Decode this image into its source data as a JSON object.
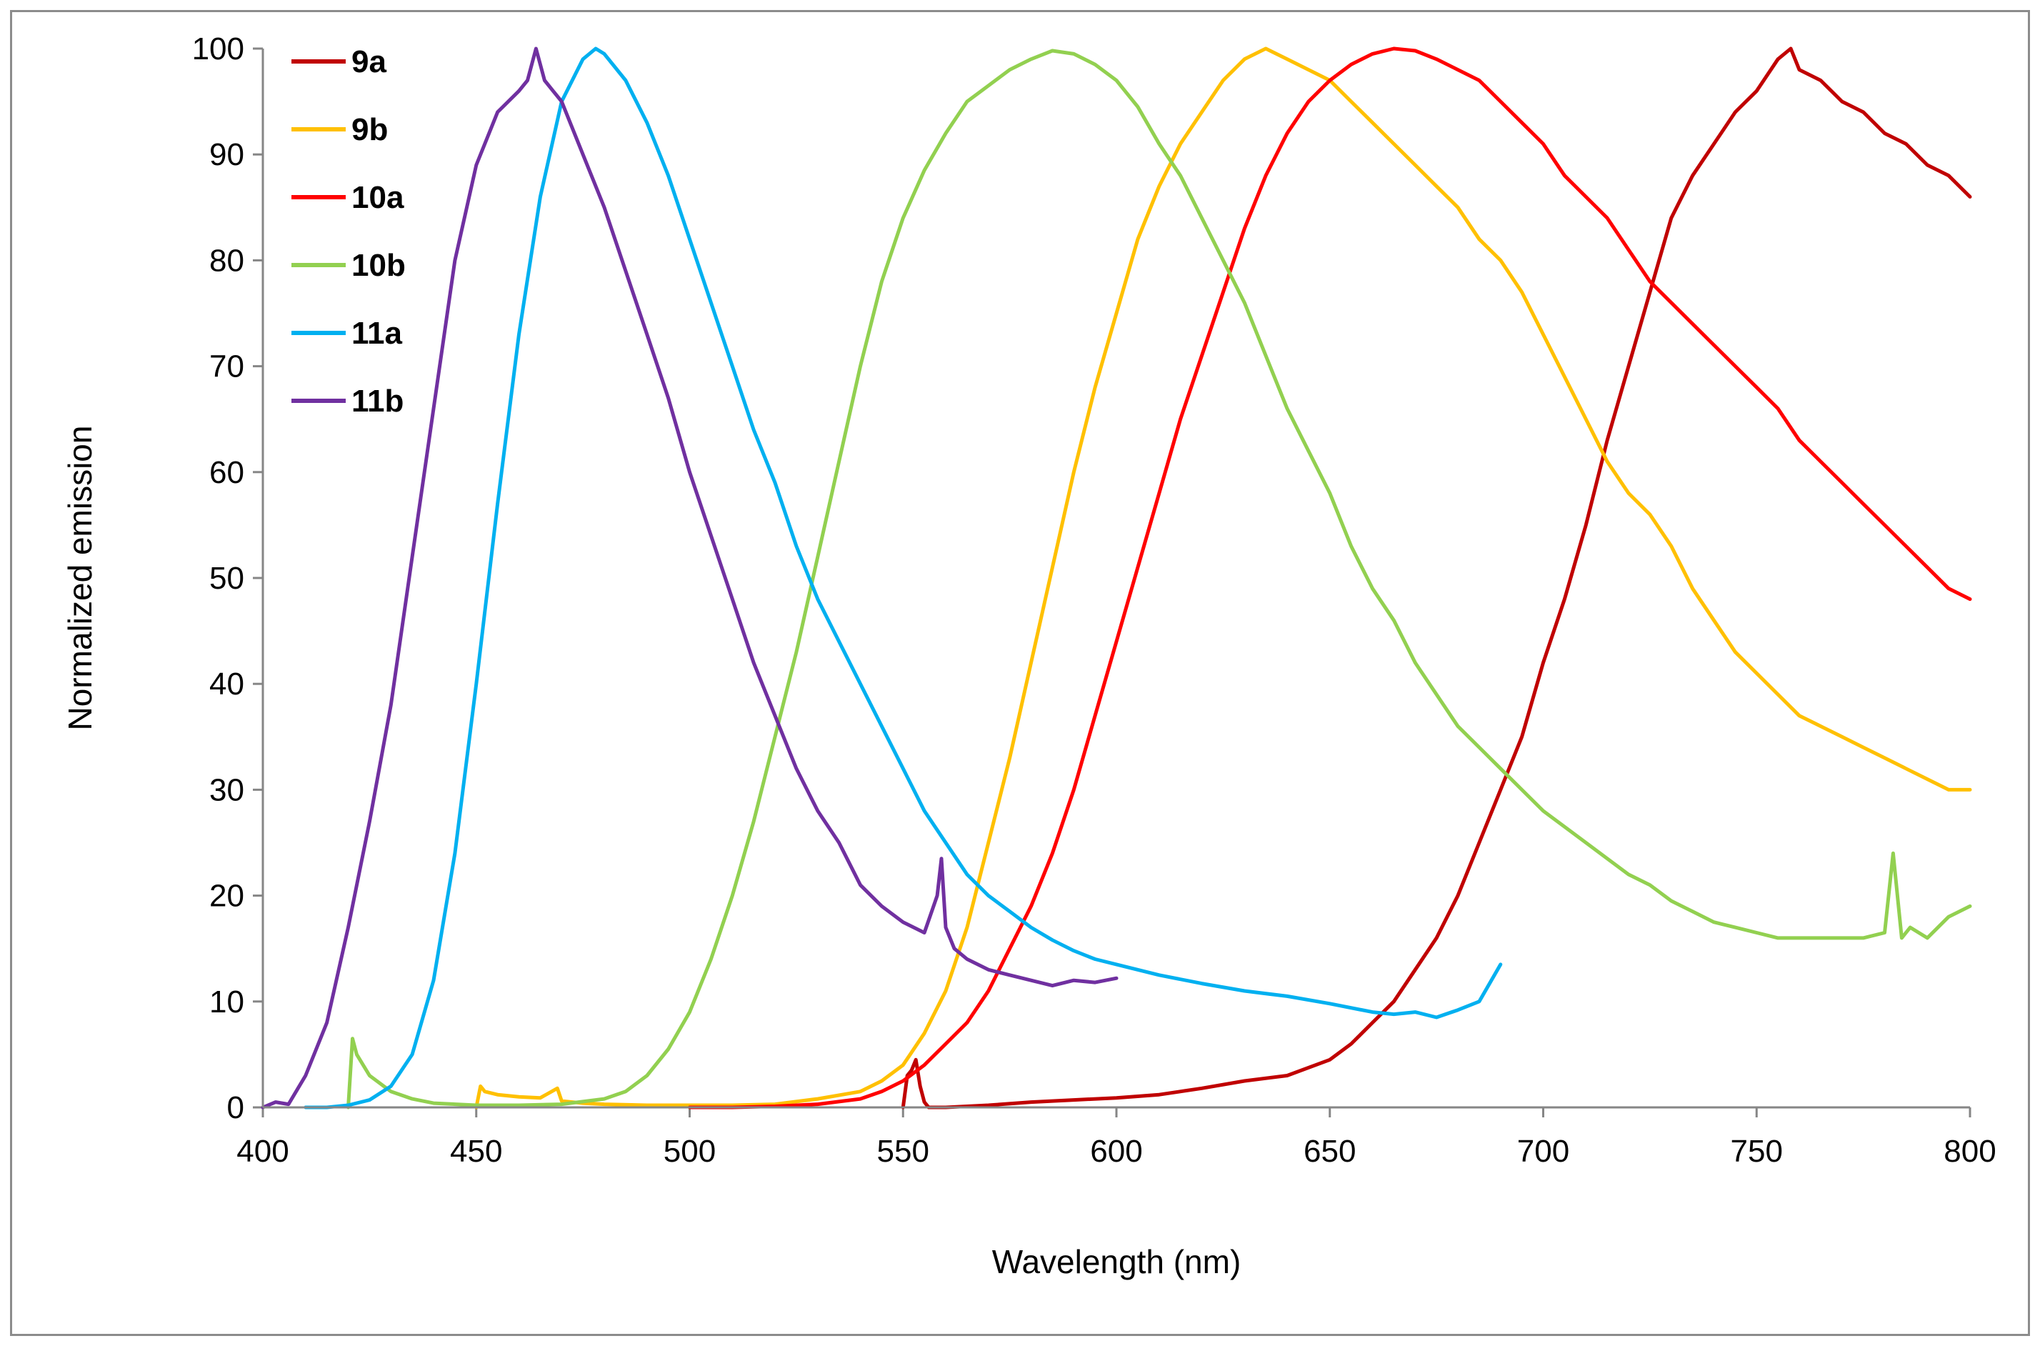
{
  "chart_data": {
    "type": "line",
    "title": "",
    "xlabel": "Wavelength  (nm)",
    "ylabel": "Normalized emission",
    "xlim": [
      400,
      800
    ],
    "ylim": [
      0,
      100
    ],
    "xticks": [
      400,
      450,
      500,
      550,
      600,
      650,
      700,
      750,
      800
    ],
    "yticks": [
      0,
      10,
      20,
      30,
      40,
      50,
      60,
      70,
      80,
      90,
      100
    ],
    "grid": false,
    "legend_position": "top-left",
    "series": [
      {
        "name": "9a",
        "color": "#c00000",
        "x": [
          550,
          551,
          552,
          553,
          554,
          555,
          556,
          560,
          570,
          580,
          590,
          600,
          610,
          620,
          630,
          640,
          650,
          655,
          660,
          665,
          670,
          675,
          680,
          685,
          690,
          695,
          700,
          705,
          710,
          715,
          720,
          725,
          730,
          735,
          740,
          745,
          750,
          755,
          758,
          760,
          765,
          770,
          775,
          780,
          785,
          790,
          795,
          800
        ],
        "y": [
          0,
          3,
          3.5,
          4.5,
          2,
          0.5,
          0,
          0,
          0.2,
          0.5,
          0.7,
          0.9,
          1.2,
          1.8,
          2.5,
          3,
          4.5,
          6,
          8,
          10,
          13,
          16,
          20,
          25,
          30,
          35,
          42,
          48,
          55,
          63,
          70,
          77,
          84,
          88,
          91,
          94,
          96,
          99,
          100,
          98,
          97,
          95,
          94,
          92,
          91,
          89,
          88,
          86
        ]
      },
      {
        "name": "9b",
        "color": "#ffc000",
        "x": [
          450,
          451,
          452,
          455,
          460,
          465,
          469,
          470,
          475,
          480,
          490,
          500,
          510,
          520,
          530,
          540,
          545,
          550,
          555,
          560,
          565,
          570,
          575,
          580,
          585,
          590,
          595,
          600,
          605,
          610,
          615,
          620,
          625,
          630,
          635,
          640,
          645,
          650,
          655,
          660,
          665,
          670,
          675,
          680,
          685,
          690,
          695,
          700,
          705,
          710,
          715,
          720,
          725,
          730,
          735,
          740,
          745,
          750,
          755,
          760,
          765,
          770,
          775,
          780,
          785,
          790,
          795,
          800
        ],
        "y": [
          0,
          2,
          1.5,
          1.2,
          1,
          0.9,
          1.8,
          0.6,
          0.4,
          0.3,
          0.2,
          0.2,
          0.2,
          0.3,
          0.8,
          1.5,
          2.5,
          4,
          7,
          11,
          17,
          25,
          33,
          42,
          51,
          60,
          68,
          75,
          82,
          87,
          91,
          94,
          97,
          99,
          100,
          99,
          98,
          97,
          95,
          93,
          91,
          89,
          87,
          85,
          82,
          80,
          77,
          73,
          69,
          65,
          61,
          58,
          56,
          53,
          49,
          46,
          43,
          41,
          39,
          37,
          36,
          35,
          34,
          33,
          32,
          31,
          30,
          30
        ]
      },
      {
        "name": "10a",
        "color": "#ff0000",
        "x": [
          500,
          510,
          520,
          530,
          540,
          545,
          550,
          555,
          560,
          565,
          570,
          575,
          580,
          585,
          590,
          595,
          600,
          605,
          610,
          615,
          620,
          625,
          630,
          635,
          640,
          645,
          650,
          655,
          660,
          665,
          670,
          675,
          680,
          685,
          690,
          695,
          700,
          705,
          710,
          715,
          720,
          725,
          730,
          735,
          740,
          745,
          750,
          755,
          760,
          765,
          770,
          775,
          780,
          785,
          790,
          795,
          800
        ],
        "y": [
          0,
          0,
          0.1,
          0.3,
          0.8,
          1.5,
          2.5,
          4,
          6,
          8,
          11,
          15,
          19,
          24,
          30,
          37,
          44,
          51,
          58,
          65,
          71,
          77,
          83,
          88,
          92,
          95,
          97,
          98.5,
          99.5,
          100,
          99.8,
          99,
          98,
          97,
          95,
          93,
          91,
          88,
          86,
          84,
          81,
          78,
          76,
          74,
          72,
          70,
          68,
          66,
          63,
          61,
          59,
          57,
          55,
          53,
          51,
          49,
          48
        ]
      },
      {
        "name": "10b",
        "color": "#92d050",
        "x": [
          420,
          421,
          422,
          425,
          430,
          435,
          440,
          450,
          460,
          470,
          480,
          485,
          490,
          495,
          500,
          505,
          510,
          515,
          520,
          525,
          530,
          535,
          540,
          545,
          550,
          555,
          560,
          565,
          570,
          575,
          580,
          585,
          590,
          595,
          600,
          605,
          610,
          615,
          620,
          625,
          630,
          635,
          640,
          645,
          650,
          655,
          660,
          665,
          670,
          675,
          680,
          685,
          690,
          695,
          700,
          705,
          710,
          715,
          720,
          725,
          730,
          735,
          740,
          745,
          750,
          755,
          760,
          765,
          770,
          775,
          780,
          782,
          784,
          786,
          790,
          795,
          800
        ],
        "y": [
          0,
          6.5,
          5,
          3,
          1.5,
          0.8,
          0.4,
          0.2,
          0.2,
          0.3,
          0.8,
          1.5,
          3,
          5.5,
          9,
          14,
          20,
          27,
          35,
          43,
          52,
          61,
          70,
          78,
          84,
          88.5,
          92,
          95,
          96.5,
          98,
          99,
          99.8,
          99.5,
          98.5,
          97,
          94.5,
          91,
          88,
          84,
          80,
          76,
          71,
          66,
          62,
          58,
          53,
          49,
          46,
          42,
          39,
          36,
          34,
          32,
          30,
          28,
          26.5,
          25,
          23.5,
          22,
          21,
          19.5,
          18.5,
          17.5,
          17,
          16.5,
          16,
          16,
          16,
          16,
          16,
          16.5,
          24,
          16,
          17,
          16,
          18,
          19
        ]
      },
      {
        "name": "11a",
        "color": "#00b0f0",
        "x": [
          410,
          415,
          420,
          425,
          430,
          435,
          440,
          445,
          450,
          455,
          460,
          465,
          470,
          475,
          478,
          480,
          485,
          490,
          495,
          500,
          505,
          510,
          515,
          520,
          525,
          530,
          535,
          540,
          545,
          550,
          555,
          560,
          565,
          570,
          575,
          580,
          585,
          590,
          595,
          600,
          610,
          620,
          630,
          640,
          650,
          660,
          665,
          670,
          675,
          680,
          685,
          690
        ],
        "y": [
          0,
          0,
          0.2,
          0.7,
          2,
          5,
          12,
          24,
          40,
          57,
          73,
          86,
          95,
          99,
          100,
          99.5,
          97,
          93,
          88,
          82,
          76,
          70,
          64,
          59,
          53,
          48,
          44,
          40,
          36,
          32,
          28,
          25,
          22,
          20,
          18.5,
          17,
          15.8,
          14.8,
          14,
          13.5,
          12.5,
          11.7,
          11,
          10.5,
          9.8,
          9,
          8.8,
          9,
          8.5,
          9.2,
          10,
          13.5
        ]
      },
      {
        "name": "11b",
        "color": "#7030a0",
        "x": [
          400,
          403,
          406,
          410,
          415,
          420,
          425,
          430,
          435,
          440,
          445,
          450,
          455,
          460,
          462,
          464,
          466,
          468,
          470,
          475,
          480,
          485,
          490,
          495,
          500,
          505,
          510,
          515,
          520,
          525,
          530,
          535,
          540,
          545,
          550,
          555,
          558,
          559,
          560,
          562,
          565,
          570,
          575,
          580,
          585,
          590,
          595,
          600
        ],
        "y": [
          0,
          0.5,
          0.3,
          3,
          8,
          17,
          27,
          38,
          52,
          66,
          80,
          89,
          94,
          96,
          97,
          100,
          97,
          96,
          95,
          90,
          85,
          79,
          73,
          67,
          60,
          54,
          48,
          42,
          37,
          32,
          28,
          25,
          21,
          19,
          17.5,
          16.5,
          20,
          23.5,
          17,
          15,
          14,
          13,
          12.5,
          12,
          11.5,
          12,
          11.8,
          12.2
        ]
      }
    ]
  }
}
